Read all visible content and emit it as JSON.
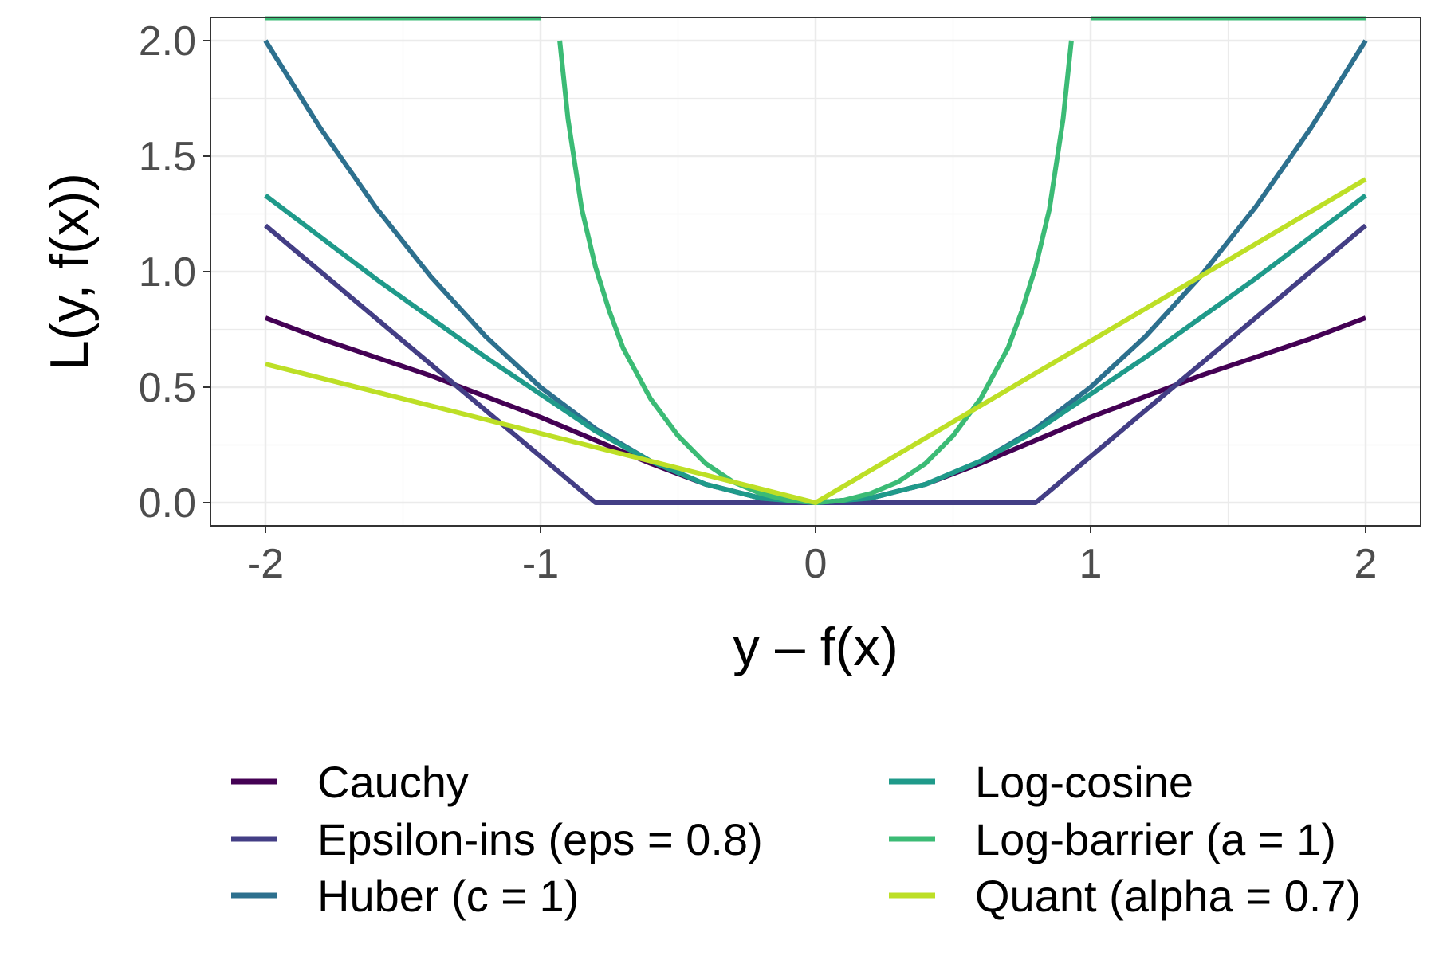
{
  "chart_data": {
    "type": "line",
    "title": "",
    "xlabel": "y – f(x)",
    "ylabel": "L(y, f(x))",
    "xlim": [
      -2.2,
      2.2
    ],
    "ylim": [
      -0.1,
      2.1
    ],
    "x_ticks": [
      -2,
      -1,
      0,
      1,
      2
    ],
    "x_tick_labels": [
      "-2",
      "-1",
      "0",
      "1",
      "2"
    ],
    "y_ticks": [
      0.0,
      0.5,
      1.0,
      1.5,
      2.0
    ],
    "y_tick_labels": [
      "0.0",
      "0.5",
      "1.0",
      "1.5",
      "2.0"
    ],
    "grid": true,
    "legend_position": "bottom",
    "series": [
      {
        "name": "Cauchy",
        "color": "#440154",
        "x": [
          -2,
          -1.8,
          -1.6,
          -1.4,
          -1.2,
          -1,
          -0.8,
          -0.6,
          -0.4,
          -0.2,
          0,
          0.2,
          0.4,
          0.6,
          0.8,
          1,
          1.2,
          1.4,
          1.6,
          1.8,
          2
        ],
        "y": [
          0.8,
          0.71,
          0.63,
          0.55,
          0.46,
          0.37,
          0.27,
          0.17,
          0.08,
          0.02,
          0.0,
          0.02,
          0.08,
          0.17,
          0.27,
          0.37,
          0.46,
          0.55,
          0.63,
          0.71,
          0.8
        ]
      },
      {
        "name": "Epsilon-ins (eps = 0.8)",
        "color": "#433E85",
        "x": [
          -2,
          -0.8,
          0.8,
          2
        ],
        "y": [
          1.2,
          0.0,
          0.0,
          1.2
        ]
      },
      {
        "name": "Huber (c = 1)",
        "color": "#2D708E",
        "x": [
          -2,
          -1.8,
          -1.6,
          -1.4,
          -1.2,
          -1,
          -0.8,
          -0.6,
          -0.4,
          -0.2,
          0,
          0.2,
          0.4,
          0.6,
          0.8,
          1,
          1.2,
          1.4,
          1.6,
          1.8,
          2
        ],
        "y": [
          2.0,
          1.62,
          1.28,
          0.98,
          0.72,
          0.5,
          0.32,
          0.18,
          0.08,
          0.02,
          0.0,
          0.02,
          0.08,
          0.18,
          0.32,
          0.5,
          0.72,
          0.98,
          1.28,
          1.62,
          2.0
        ]
      },
      {
        "name": "Log-cosine",
        "color": "#1F9A8A",
        "x": [
          -2,
          -1.8,
          -1.6,
          -1.4,
          -1.2,
          -1,
          -0.8,
          -0.6,
          -0.4,
          -0.2,
          0,
          0.2,
          0.4,
          0.6,
          0.8,
          1,
          1.2,
          1.4,
          1.6,
          1.8,
          2
        ],
        "y": [
          1.33,
          1.15,
          0.97,
          0.8,
          0.63,
          0.47,
          0.31,
          0.18,
          0.08,
          0.02,
          0.0,
          0.02,
          0.08,
          0.18,
          0.31,
          0.47,
          0.63,
          0.8,
          0.97,
          1.15,
          1.33
        ]
      },
      {
        "name": "Log-barrier (a = 1)",
        "color": "#3BBB75",
        "x": [
          -0.93,
          -0.9,
          -0.85,
          -0.8,
          -0.75,
          -0.7,
          -0.6,
          -0.5,
          -0.4,
          -0.3,
          -0.2,
          -0.1,
          0,
          0.1,
          0.2,
          0.3,
          0.4,
          0.5,
          0.6,
          0.7,
          0.75,
          0.8,
          0.85,
          0.9,
          0.93
        ],
        "y": [
          2.0,
          1.66,
          1.27,
          1.02,
          0.83,
          0.67,
          0.45,
          0.29,
          0.17,
          0.09,
          0.04,
          0.01,
          0.0,
          0.01,
          0.04,
          0.09,
          0.17,
          0.29,
          0.45,
          0.67,
          0.83,
          1.02,
          1.27,
          1.66,
          2.0
        ],
        "segments_above": [
          [
            -2,
            -1
          ],
          [
            1,
            2
          ]
        ]
      },
      {
        "name": "Quant (alpha = 0.7)",
        "color": "#BDDF26",
        "x": [
          -2,
          0,
          2
        ],
        "y": [
          0.6,
          0.0,
          1.4
        ]
      }
    ]
  }
}
